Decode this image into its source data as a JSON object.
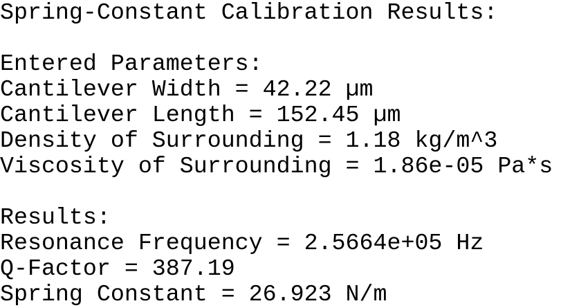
{
  "title": "Spring-Constant Calibration Results:",
  "parameters": {
    "heading": "Entered Parameters:",
    "lines": [
      "Cantilever Width = 42.22 µm",
      "Cantilever Length = 152.45 µm",
      "Density of Surrounding = 1.18 kg/m^3",
      "Viscosity of Surrounding = 1.86e-05 Pa*s"
    ]
  },
  "results": {
    "heading": "Results:",
    "lines": [
      "Resonance Frequency = 2.5664e+05 Hz",
      "Q-Factor = 387.19",
      "Spring Constant = 26.923 N/m"
    ]
  }
}
